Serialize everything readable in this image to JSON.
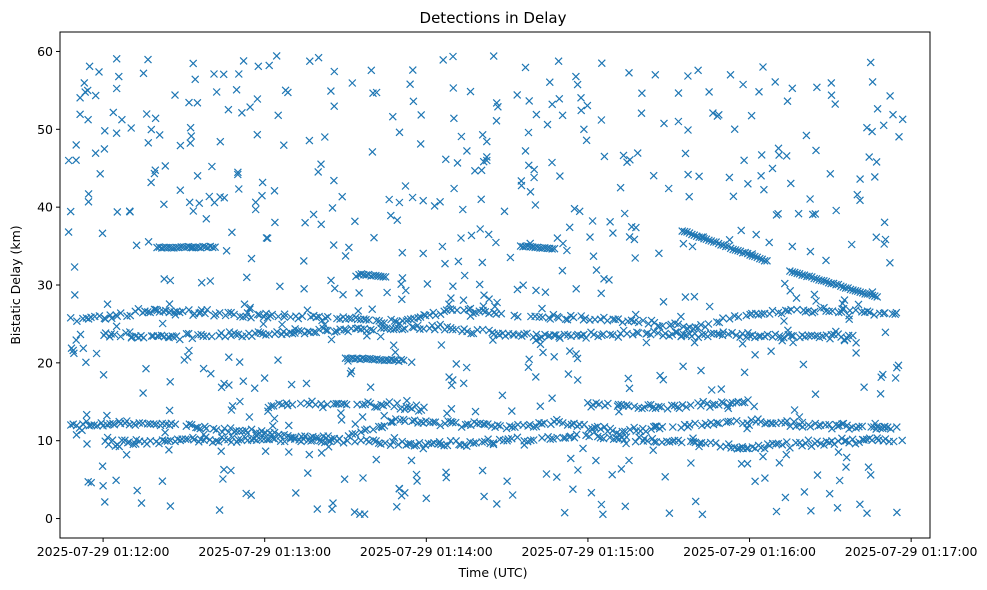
{
  "chart_data": {
    "type": "scatter",
    "title": "Detections in Delay",
    "xlabel": "Time (UTC)",
    "ylabel": "Bistatic Delay (km)",
    "marker": "x",
    "color": "#1f77b4",
    "grid": false,
    "legend": "none",
    "xlim": [
      "2025-07-29 01:11:44",
      "2025-07-29 01:17:07"
    ],
    "ylim": [
      -2.5,
      62.5
    ],
    "xticks": [
      "2025-07-29 01:12:00",
      "2025-07-29 01:13:00",
      "2025-07-29 01:14:00",
      "2025-07-29 01:15:00",
      "2025-07-29 01:16:00",
      "2025-07-29 01:17:00"
    ],
    "yticks": [
      "0",
      "10",
      "20",
      "30",
      "40",
      "50",
      "60"
    ],
    "data_window": [
      "2025-07-29 01:11:47",
      "2025-07-29 01:16:57"
    ],
    "series": [
      {
        "kind": "band",
        "points": [
          [
            "2025-07-29 01:11:48",
            12.0
          ],
          [
            "2025-07-29 01:12:10",
            12.2
          ],
          [
            "2025-07-29 01:12:30",
            12.0
          ],
          [
            "2025-07-29 01:12:50",
            11.3
          ],
          [
            "2025-07-29 01:13:10",
            10.6
          ],
          [
            "2025-07-29 01:13:30",
            10.4
          ],
          [
            "2025-07-29 01:13:50",
            12.6
          ],
          [
            "2025-07-29 01:14:10",
            12.2
          ],
          [
            "2025-07-29 01:14:30",
            11.7
          ],
          [
            "2025-07-29 01:14:50",
            12.3
          ],
          [
            "2025-07-29 01:15:10",
            11.2
          ],
          [
            "2025-07-29 01:15:30",
            11.6
          ],
          [
            "2025-07-29 01:15:50",
            12.4
          ],
          [
            "2025-07-29 01:16:10",
            12.3
          ],
          [
            "2025-07-29 01:16:30",
            12.0
          ],
          [
            "2025-07-29 01:16:55",
            11.5
          ]
        ]
      },
      {
        "kind": "band",
        "points": [
          [
            "2025-07-29 01:12:00",
            9.8
          ],
          [
            "2025-07-29 01:12:30",
            10.0
          ],
          [
            "2025-07-29 01:13:00",
            10.2
          ],
          [
            "2025-07-29 01:13:30",
            10.0
          ],
          [
            "2025-07-29 01:14:00",
            9.4
          ],
          [
            "2025-07-29 01:14:30",
            10.0
          ],
          [
            "2025-07-29 01:15:00",
            10.6
          ],
          [
            "2025-07-29 01:15:30",
            10.0
          ],
          [
            "2025-07-29 01:16:00",
            9.2
          ],
          [
            "2025-07-29 01:16:30",
            9.8
          ],
          [
            "2025-07-29 01:16:55",
            10.2
          ]
        ]
      },
      {
        "kind": "band",
        "points": [
          [
            "2025-07-29 01:11:48",
            25.5
          ],
          [
            "2025-07-29 01:12:20",
            26.8
          ],
          [
            "2025-07-29 01:12:50",
            26.1
          ],
          [
            "2025-07-29 01:13:20",
            25.9
          ],
          [
            "2025-07-29 01:13:50",
            25.2
          ],
          [
            "2025-07-29 01:14:10",
            26.9
          ],
          [
            "2025-07-29 01:14:40",
            26.0
          ],
          [
            "2025-07-29 01:15:10",
            25.5
          ],
          [
            "2025-07-29 01:15:40",
            24.6
          ],
          [
            "2025-07-29 01:16:00",
            26.4
          ],
          [
            "2025-07-29 01:16:30",
            26.8
          ],
          [
            "2025-07-29 01:16:55",
            26.2
          ]
        ]
      },
      {
        "kind": "band",
        "points": [
          [
            "2025-07-29 01:12:00",
            23.6
          ],
          [
            "2025-07-29 01:12:40",
            23.4
          ],
          [
            "2025-07-29 01:13:20",
            24.0
          ],
          [
            "2025-07-29 01:14:00",
            24.6
          ],
          [
            "2025-07-29 01:14:40",
            23.4
          ],
          [
            "2025-07-29 01:15:20",
            23.8
          ],
          [
            "2025-07-29 01:16:00",
            23.5
          ],
          [
            "2025-07-29 01:16:40",
            23.4
          ]
        ]
      },
      {
        "kind": "band",
        "points": [
          [
            "2025-07-29 01:13:00",
            14.4
          ],
          [
            "2025-07-29 01:13:30",
            14.9
          ],
          [
            "2025-07-29 01:14:00",
            14.2
          ]
        ]
      },
      {
        "kind": "band",
        "points": [
          [
            "2025-07-29 01:15:00",
            14.6
          ],
          [
            "2025-07-29 01:15:30",
            14.4
          ],
          [
            "2025-07-29 01:16:00",
            14.9
          ]
        ]
      },
      {
        "kind": "track",
        "points": [
          [
            "2025-07-29 01:15:35",
            37.0
          ],
          [
            "2025-07-29 01:16:07",
            33.0
          ]
        ]
      },
      {
        "kind": "track",
        "points": [
          [
            "2025-07-29 01:16:15",
            31.8
          ],
          [
            "2025-07-29 01:16:48",
            28.4
          ]
        ]
      },
      {
        "kind": "track",
        "points": [
          [
            "2025-07-29 01:14:35",
            35.0
          ],
          [
            "2025-07-29 01:14:48",
            34.6
          ]
        ]
      },
      {
        "kind": "track",
        "points": [
          [
            "2025-07-29 01:12:20",
            34.8
          ],
          [
            "2025-07-29 01:12:42",
            34.9
          ]
        ]
      },
      {
        "kind": "track",
        "points": [
          [
            "2025-07-29 01:13:35",
            31.4
          ],
          [
            "2025-07-29 01:13:45",
            31.0
          ]
        ]
      },
      {
        "kind": "track",
        "points": [
          [
            "2025-07-29 01:13:30",
            20.6
          ],
          [
            "2025-07-29 01:13:52",
            20.3
          ]
        ]
      },
      {
        "kind": "scatter",
        "points": [
          [
            "2025-07-29 01:11:50",
            48.0
          ],
          [
            "2025-07-29 01:11:55",
            58.1
          ],
          [
            "2025-07-29 01:12:05",
            49.5
          ],
          [
            "2025-07-29 01:12:15",
            57.2
          ],
          [
            "2025-07-29 01:12:35",
            53.4
          ],
          [
            "2025-07-29 01:12:50",
            44.2
          ],
          [
            "2025-07-29 01:13:05",
            51.8
          ],
          [
            "2025-07-29 01:13:20",
            59.2
          ],
          [
            "2025-07-29 01:13:40",
            47.1
          ],
          [
            "2025-07-29 01:13:55",
            57.6
          ],
          [
            "2025-07-29 01:14:10",
            55.3
          ],
          [
            "2025-07-29 01:14:25",
            59.4
          ],
          [
            "2025-07-29 01:14:45",
            50.6
          ],
          [
            "2025-07-29 01:15:05",
            51.2
          ],
          [
            "2025-07-29 01:15:25",
            57.0
          ],
          [
            "2025-07-29 01:15:45",
            54.8
          ],
          [
            "2025-07-29 01:16:05",
            58.0
          ],
          [
            "2025-07-29 01:16:25",
            55.4
          ],
          [
            "2025-07-29 01:16:45",
            58.6
          ],
          [
            "2025-07-29 01:12:10",
            39.4
          ],
          [
            "2025-07-29 01:12:45",
            41.2
          ],
          [
            "2025-07-29 01:13:15",
            38.0
          ],
          [
            "2025-07-29 01:13:50",
            40.6
          ],
          [
            "2025-07-29 01:14:20",
            37.2
          ],
          [
            "2025-07-29 01:14:55",
            39.8
          ],
          [
            "2025-07-29 01:15:30",
            42.4
          ],
          [
            "2025-07-29 01:16:10",
            39.0
          ],
          [
            "2025-07-29 01:16:40",
            41.6
          ],
          [
            "2025-07-29 01:12:00",
            4.2
          ],
          [
            "2025-07-29 01:12:25",
            1.6
          ],
          [
            "2025-07-29 01:12:55",
            3.0
          ],
          [
            "2025-07-29 01:13:25",
            1.2
          ],
          [
            "2025-07-29 01:14:00",
            2.6
          ],
          [
            "2025-07-29 01:14:30",
            4.8
          ],
          [
            "2025-07-29 01:15:05",
            1.8
          ],
          [
            "2025-07-29 01:15:40",
            2.2
          ],
          [
            "2025-07-29 01:16:10",
            0.9
          ],
          [
            "2025-07-29 01:16:45",
            5.6
          ],
          [
            "2025-07-29 01:12:40",
            18.6
          ],
          [
            "2025-07-29 01:13:10",
            17.2
          ],
          [
            "2025-07-29 01:14:15",
            19.4
          ],
          [
            "2025-07-29 01:15:15",
            18.0
          ],
          [
            "2025-07-29 01:16:20",
            19.8
          ]
        ]
      }
    ]
  }
}
